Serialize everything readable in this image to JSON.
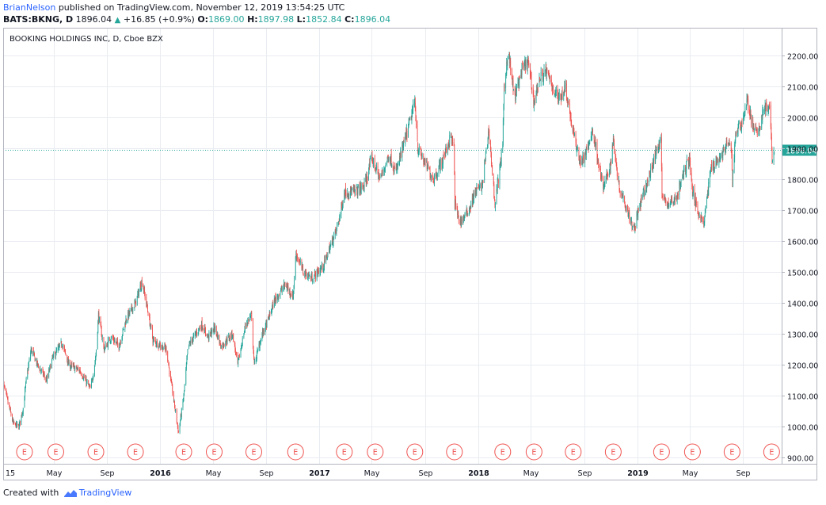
{
  "header": {
    "author": "BrianNelson",
    "published": "published on TradingView.com, November 12, 2019 13:54:25 UTC"
  },
  "quote": {
    "symbol": "BATS:BKNG, D",
    "last": "1896.04",
    "arrow": "▲",
    "change": "+16.85 (+0.9%)",
    "o_label": "O:",
    "o": "1869.00",
    "h_label": "H:",
    "h": "1897.98",
    "l_label": "L:",
    "l": "1852.84",
    "c_label": "C:",
    "c": "1896.04"
  },
  "footer": {
    "created_with": "Created with",
    "brand": "TradingView"
  },
  "colors": {
    "up": "#26a69a",
    "down": "#ef5350",
    "grid": "#e9ecf1",
    "price_line": "#26a69a",
    "earnings": "#ef5350",
    "accent": "#2962ff"
  },
  "chart_data": {
    "type": "candlestick",
    "title": "BOOKING HOLDINGS INC, D, Cboe BZX",
    "ylim": [
      880,
      2290
    ],
    "y_ticks": [
      900,
      1000,
      1100,
      1200,
      1300,
      1400,
      1500,
      1600,
      1700,
      1800,
      1900,
      2000,
      2100,
      2200
    ],
    "y_tick_labels": [
      "900.00",
      "1000.00",
      "1100.00",
      "1200.00",
      "1300.00",
      "1400.00",
      "1500.00",
      "1600.00",
      "1700.00",
      "1800.00",
      "1900.00",
      "2000.00",
      "2100.00",
      "2200.00"
    ],
    "x_range": [
      "2015-01-05",
      "2019-11-29"
    ],
    "x_ticks": [
      {
        "date": "2015-01-01",
        "label": "15"
      },
      {
        "date": "2015-05-01",
        "label": "May"
      },
      {
        "date": "2015-09-01",
        "label": "Sep"
      },
      {
        "date": "2016-01-01",
        "label": "2016"
      },
      {
        "date": "2016-05-01",
        "label": "May"
      },
      {
        "date": "2016-09-01",
        "label": "Sep"
      },
      {
        "date": "2017-01-01",
        "label": "2017"
      },
      {
        "date": "2017-05-01",
        "label": "May"
      },
      {
        "date": "2017-09-01",
        "label": "Sep"
      },
      {
        "date": "2018-01-01",
        "label": "2018"
      },
      {
        "date": "2018-05-01",
        "label": "May"
      },
      {
        "date": "2018-09-01",
        "label": "Sep"
      },
      {
        "date": "2019-01-01",
        "label": "2019"
      },
      {
        "date": "2019-05-01",
        "label": "May"
      },
      {
        "date": "2019-09-01",
        "label": "Sep"
      }
    ],
    "last_price": 1896.04,
    "last_price_label": "1896.04",
    "earnings_label": "E",
    "earnings_dates": [
      "2015-02-23",
      "2015-05-06",
      "2015-08-06",
      "2015-11-05",
      "2016-02-24",
      "2016-05-04",
      "2016-08-03",
      "2016-11-07",
      "2017-02-27",
      "2017-05-09",
      "2017-08-08",
      "2017-11-07",
      "2018-02-26",
      "2018-05-09",
      "2018-08-07",
      "2018-11-07",
      "2019-02-26",
      "2019-05-08",
      "2019-08-07",
      "2019-11-06"
    ],
    "grid": true,
    "price_path": [
      [
        "2015-01-05",
        1140
      ],
      [
        "2015-01-28",
        1010
      ],
      [
        "2015-02-10",
        1000
      ],
      [
        "2015-02-20",
        1060
      ],
      [
        "2015-02-27",
        1150
      ],
      [
        "2015-03-10",
        1250
      ],
      [
        "2015-03-25",
        1200
      ],
      [
        "2015-04-15",
        1150
      ],
      [
        "2015-04-28",
        1220
      ],
      [
        "2015-05-20",
        1270
      ],
      [
        "2015-06-05",
        1200
      ],
      [
        "2015-07-01",
        1180
      ],
      [
        "2015-07-25",
        1120
      ],
      [
        "2015-08-06",
        1230
      ],
      [
        "2015-08-12",
        1360
      ],
      [
        "2015-08-25",
        1250
      ],
      [
        "2015-09-10",
        1290
      ],
      [
        "2015-09-28",
        1260
      ],
      [
        "2015-10-15",
        1350
      ],
      [
        "2015-11-05",
        1400
      ],
      [
        "2015-11-20",
        1470
      ],
      [
        "2015-11-30",
        1400
      ],
      [
        "2015-12-15",
        1280
      ],
      [
        "2016-01-15",
        1250
      ],
      [
        "2016-01-25",
        1150
      ],
      [
        "2016-02-08",
        1020
      ],
      [
        "2016-02-12",
        980
      ],
      [
        "2016-02-24",
        1100
      ],
      [
        "2016-03-05",
        1260
      ],
      [
        "2016-04-05",
        1330
      ],
      [
        "2016-04-20",
        1290
      ],
      [
        "2016-05-05",
        1320
      ],
      [
        "2016-05-20",
        1260
      ],
      [
        "2016-06-15",
        1300
      ],
      [
        "2016-06-27",
        1200
      ],
      [
        "2016-07-15",
        1330
      ],
      [
        "2016-07-28",
        1360
      ],
      [
        "2016-08-04",
        1200
      ],
      [
        "2016-08-20",
        1290
      ],
      [
        "2016-09-01",
        1330
      ],
      [
        "2016-09-20",
        1410
      ],
      [
        "2016-10-15",
        1460
      ],
      [
        "2016-11-01",
        1420
      ],
      [
        "2016-11-08",
        1560
      ],
      [
        "2016-11-25",
        1500
      ],
      [
        "2016-12-15",
        1480
      ],
      [
        "2017-01-10",
        1520
      ],
      [
        "2017-01-25",
        1580
      ],
      [
        "2017-02-10",
        1640
      ],
      [
        "2017-02-28",
        1760
      ],
      [
        "2017-03-25",
        1760
      ],
      [
        "2017-04-15",
        1780
      ],
      [
        "2017-05-01",
        1870
      ],
      [
        "2017-05-20",
        1800
      ],
      [
        "2017-06-10",
        1880
      ],
      [
        "2017-06-25",
        1820
      ],
      [
        "2017-07-15",
        1920
      ],
      [
        "2017-08-01",
        2010
      ],
      [
        "2017-08-08",
        2050
      ],
      [
        "2017-08-15",
        1900
      ],
      [
        "2017-09-01",
        1850
      ],
      [
        "2017-09-20",
        1800
      ],
      [
        "2017-10-10",
        1860
      ],
      [
        "2017-10-30",
        1940
      ],
      [
        "2017-11-06",
        1900
      ],
      [
        "2017-11-08",
        1720
      ],
      [
        "2017-11-20",
        1660
      ],
      [
        "2017-12-10",
        1700
      ],
      [
        "2017-12-25",
        1760
      ],
      [
        "2018-01-10",
        1780
      ],
      [
        "2018-01-25",
        1960
      ],
      [
        "2018-02-08",
        1720
      ],
      [
        "2018-02-20",
        1840
      ],
      [
        "2018-02-26",
        1920
      ],
      [
        "2018-03-01",
        2080
      ],
      [
        "2018-03-10",
        2220
      ],
      [
        "2018-03-25",
        2060
      ],
      [
        "2018-04-10",
        2150
      ],
      [
        "2018-04-25",
        2180
      ],
      [
        "2018-05-09",
        2050
      ],
      [
        "2018-05-20",
        2120
      ],
      [
        "2018-06-05",
        2150
      ],
      [
        "2018-06-20",
        2100
      ],
      [
        "2018-07-05",
        2060
      ],
      [
        "2018-07-20",
        2100
      ],
      [
        "2018-08-07",
        1950
      ],
      [
        "2018-08-15",
        1900
      ],
      [
        "2018-08-25",
        1850
      ],
      [
        "2018-09-10",
        1900
      ],
      [
        "2018-09-20",
        1960
      ],
      [
        "2018-10-01",
        1880
      ],
      [
        "2018-10-15",
        1770
      ],
      [
        "2018-11-01",
        1850
      ],
      [
        "2018-11-07",
        1930
      ],
      [
        "2018-11-20",
        1780
      ],
      [
        "2018-12-10",
        1700
      ],
      [
        "2018-12-24",
        1640
      ],
      [
        "2019-01-10",
        1730
      ],
      [
        "2019-01-25",
        1790
      ],
      [
        "2019-02-10",
        1870
      ],
      [
        "2019-02-25",
        1940
      ],
      [
        "2019-02-27",
        1740
      ],
      [
        "2019-03-15",
        1720
      ],
      [
        "2019-04-01",
        1740
      ],
      [
        "2019-04-20",
        1830
      ],
      [
        "2019-05-01",
        1870
      ],
      [
        "2019-05-08",
        1760
      ],
      [
        "2019-05-20",
        1700
      ],
      [
        "2019-06-03",
        1660
      ],
      [
        "2019-06-20",
        1840
      ],
      [
        "2019-07-10",
        1870
      ],
      [
        "2019-07-30",
        1920
      ],
      [
        "2019-08-06",
        1880
      ],
      [
        "2019-08-08",
        1790
      ],
      [
        "2019-08-15",
        1950
      ],
      [
        "2019-09-01",
        1990
      ],
      [
        "2019-09-10",
        2060
      ],
      [
        "2019-09-20",
        1990
      ],
      [
        "2019-10-05",
        1940
      ],
      [
        "2019-10-20",
        2040
      ],
      [
        "2019-11-01",
        2020
      ],
      [
        "2019-11-05",
        1940
      ],
      [
        "2019-11-07",
        1870
      ],
      [
        "2019-11-12",
        1896
      ]
    ]
  }
}
